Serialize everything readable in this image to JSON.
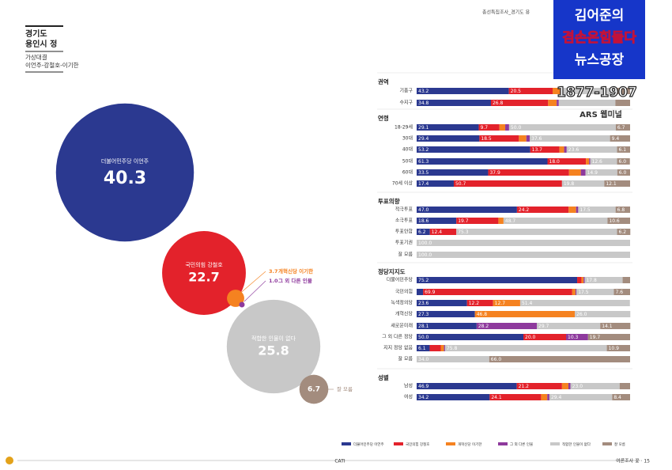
{
  "header": {
    "region": "경기도",
    "district": "용인시 정",
    "survey": "가상대결",
    "matchup": "이언주-강철호-이기한",
    "doc_title": "총선특집조사_경기도 용"
  },
  "overlay": {
    "line1": "김어준의",
    "line2": "겸손은힘들다",
    "line3": "뉴스공장",
    "phone": "1877-1907",
    "method": "ARS 웹미널"
  },
  "footer": {
    "method": "CATI",
    "page": "여론조사 꽃 · 15"
  },
  "chart_data": [
    {
      "type": "bubble",
      "categories": [
        "더불어민주당 이언주",
        "국민의힘 강철호",
        "개혁신당 이기한",
        "그 외 다른 인물",
        "적합한 인물이 없다",
        "잘 모름"
      ],
      "values": [
        40.3,
        22.7,
        3.7,
        1.0,
        25.8,
        6.7
      ],
      "value_labels": [
        "40.3",
        "22.7",
        "3.7",
        "1.0",
        "25.8",
        "6.7"
      ],
      "colors": [
        "#2b3990",
        "#e3222b",
        "#f58220",
        "#8e3a9d",
        "#c8c8c8",
        "#a38c7e"
      ]
    },
    {
      "type": "bar",
      "orientation": "horizontal",
      "stacked": true,
      "xlim": [
        0,
        100
      ],
      "groups": [
        {
          "name": "권역",
          "categories": [
            "기흥구",
            "수지구"
          ]
        },
        {
          "name": "연령",
          "categories": [
            "18-29세",
            "30대",
            "40대",
            "50대",
            "60대",
            "70세 이상"
          ]
        },
        {
          "name": "투표의향",
          "categories": [
            "적극투표",
            "소극투표",
            "투표안함",
            "투표기권",
            "잘 모름"
          ]
        },
        {
          "name": "정당지지도",
          "categories": [
            "더불어민주당",
            "국민의힘",
            "녹색정의당",
            "개혁신당",
            "새로운미래",
            "그 외 다른 정당",
            "지지 정당 없음",
            "잘 모름"
          ]
        },
        {
          "name": "성별",
          "categories": [
            "남성",
            "여성"
          ]
        }
      ],
      "series": [
        {
          "name": "더불어민주당 이언주",
          "color": "#2b3990",
          "values": [
            43.2,
            34.8,
            29.1,
            29.4,
            53.2,
            61.3,
            33.5,
            17.4,
            47.0,
            18.6,
            6.2,
            0,
            0,
            75.2,
            3.0,
            23.6,
            27.3,
            28.1,
            50.0,
            6.1,
            0,
            46.9,
            34.2
          ],
          "value_labels": [
            "43.2",
            "34.8",
            "29.1",
            "29.4",
            "53.2",
            "61.3",
            "33.5",
            "17.4",
            "47.0",
            "18.6",
            "6.2",
            null,
            null,
            "75.2",
            null,
            "23.6",
            "27.3",
            "28.1",
            "50.0",
            "6.1",
            null,
            "46.9",
            "34.2"
          ]
        },
        {
          "name": "국민의힘 강철호",
          "color": "#e3222b",
          "values": [
            20.5,
            26.8,
            9.7,
            18.5,
            13.7,
            18.0,
            37.9,
            50.7,
            24.2,
            19.7,
            12.4,
            0,
            0,
            2.0,
            69.9,
            12.2,
            0,
            0,
            20.0,
            5.2,
            0,
            21.2,
            24.1
          ],
          "value_labels": [
            "20.5",
            "26.8",
            "9.7",
            "18.5",
            "13.7",
            "18.0",
            "37.9",
            "50.7",
            "24.2",
            "19.7",
            "12.4",
            null,
            null,
            null,
            "69.9",
            "12.2",
            null,
            null,
            "20.0",
            null,
            null,
            "21.2",
            "24.1"
          ]
        },
        {
          "name": "개혁신당 이기한",
          "color": "#f58220",
          "values": [
            3.5,
            4.0,
            2.7,
            3.5,
            2.2,
            1.5,
            5.5,
            0,
            3.5,
            2.4,
            0,
            0,
            0,
            1.0,
            1.5,
            12.7,
            46.8,
            0,
            0,
            1.5,
            0,
            3.0,
            2.9
          ],
          "value_labels": [
            null,
            null,
            null,
            null,
            null,
            null,
            null,
            null,
            null,
            null,
            null,
            null,
            null,
            null,
            null,
            "12.7",
            "46.8",
            null,
            null,
            null,
            null,
            null,
            null
          ]
        },
        {
          "name": "그 외 다른 인물",
          "color": "#8e3a9d",
          "values": [
            1.0,
            1.0,
            1.8,
            1.6,
            1.2,
            0.5,
            2.2,
            0,
            1.0,
            0,
            0,
            0,
            0,
            0.5,
            0.5,
            0,
            0,
            28.2,
            10.3,
            0.5,
            0,
            1.0,
            1.0
          ],
          "value_labels": [
            null,
            null,
            null,
            null,
            null,
            null,
            null,
            null,
            null,
            null,
            null,
            null,
            null,
            null,
            null,
            null,
            null,
            "28.2",
            "10.3",
            null,
            null,
            null,
            null
          ]
        },
        {
          "name": "적합한 인물이 없다",
          "color": "#c8c8c8",
          "values": [
            25.0,
            26.5,
            50.0,
            37.6,
            23.6,
            12.6,
            14.9,
            19.8,
            17.5,
            48.7,
            75.3,
            100.0,
            100.0,
            17.8,
            17.5,
            51.4,
            26.0,
            29.7,
            0,
            75.8,
            34.0,
            23.0,
            29.4
          ],
          "value_labels": [
            null,
            null,
            "50.0",
            "37.6",
            "23.6",
            "12.6",
            "14.9",
            "19.8",
            "17.5",
            "48.7",
            "75.3",
            "100.0",
            "100.0",
            "17.8",
            "17.5",
            "51.4",
            "26.0",
            "29.7",
            null,
            "75.8",
            "34.0",
            "23.0",
            "29.4"
          ]
        },
        {
          "name": "잘 모름",
          "color": "#a38c7e",
          "values": [
            6.8,
            6.9,
            6.7,
            9.4,
            6.1,
            6.0,
            6.0,
            12.1,
            6.8,
            10.6,
            6.2,
            0,
            0,
            3.5,
            7.6,
            0,
            0,
            14.1,
            19.7,
            10.9,
            66.0,
            4.9,
            8.4
          ],
          "value_labels": [
            null,
            null,
            "6.7",
            "9.4",
            "6.1",
            "6.0",
            "6.0",
            "12.1",
            "6.8",
            "10.6",
            "6.2",
            null,
            null,
            null,
            "7.6",
            null,
            null,
            "14.1",
            "19.7",
            "10.9",
            "66.0",
            null,
            "8.4"
          ]
        }
      ]
    }
  ]
}
